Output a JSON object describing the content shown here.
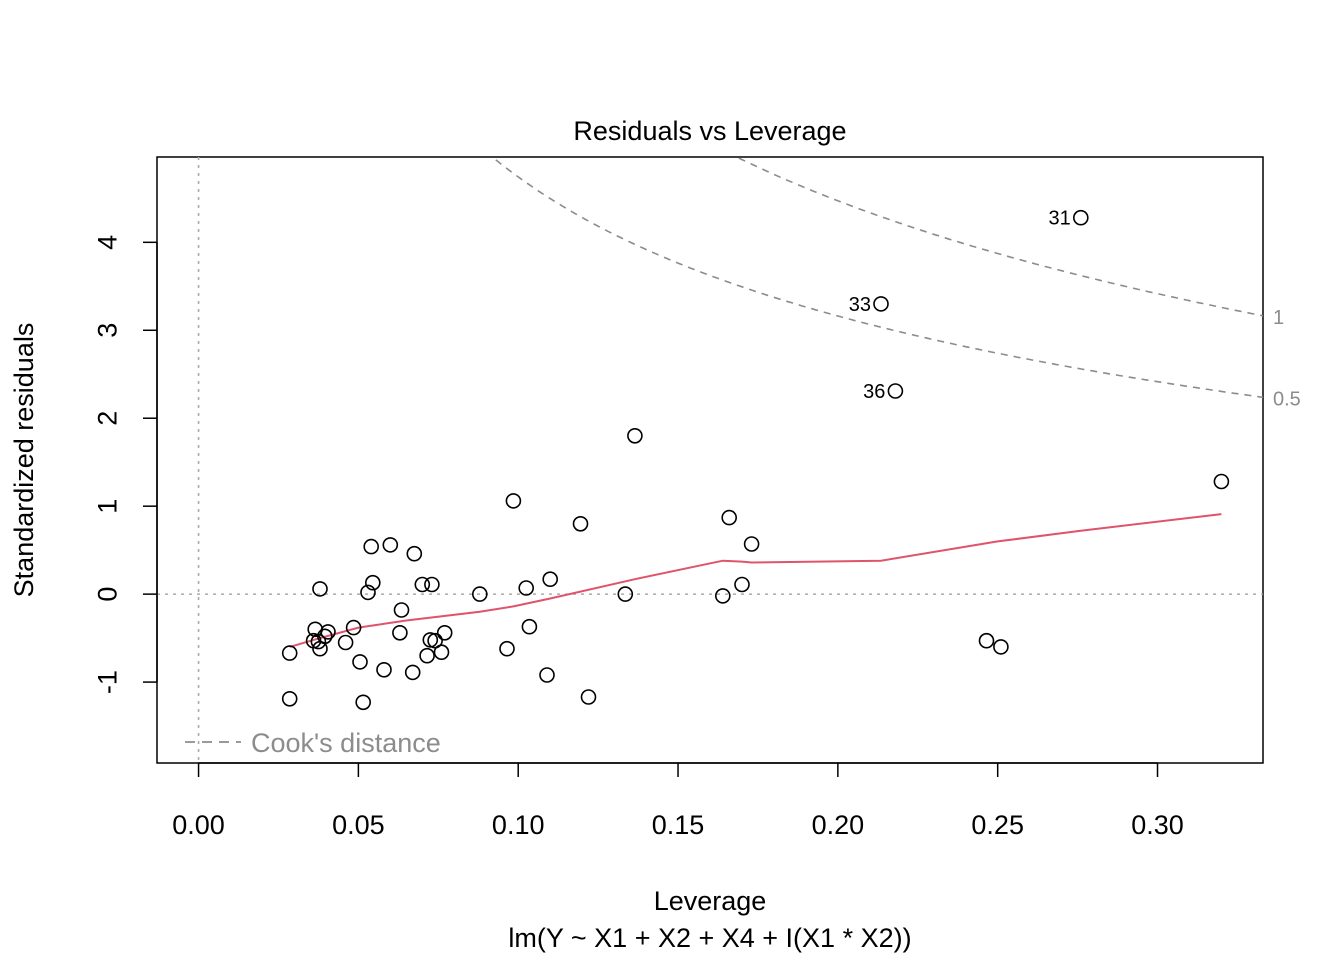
{
  "chart_data": {
    "type": "scatter",
    "title": "Residuals vs Leverage",
    "xlabel": "Leverage",
    "sublabel": "lm(Y ~ X1 + X2 + X4 + I(X1 * X2))",
    "ylabel": "Standardized residuals",
    "xlim": [
      -0.013,
      0.333
    ],
    "ylim": [
      -1.92,
      4.97
    ],
    "xticks": [
      0.0,
      0.05,
      0.1,
      0.15,
      0.2,
      0.25,
      0.3
    ],
    "xtick_labels": [
      "0.00",
      "0.05",
      "0.10",
      "0.15",
      "0.20",
      "0.25",
      "0.30"
    ],
    "yticks": [
      -1,
      0,
      1,
      2,
      3,
      4
    ],
    "ytick_labels": [
      "-1",
      "0",
      "1",
      "2",
      "3",
      "4"
    ],
    "points": [
      {
        "x": 0.0285,
        "y": -1.19
      },
      {
        "x": 0.0285,
        "y": -0.67
      },
      {
        "x": 0.036,
        "y": -0.53
      },
      {
        "x": 0.0365,
        "y": -0.4
      },
      {
        "x": 0.0375,
        "y": -0.54
      },
      {
        "x": 0.038,
        "y": -0.62
      },
      {
        "x": 0.038,
        "y": 0.06
      },
      {
        "x": 0.0395,
        "y": -0.48
      },
      {
        "x": 0.0405,
        "y": -0.43
      },
      {
        "x": 0.046,
        "y": -0.55
      },
      {
        "x": 0.0485,
        "y": -0.38
      },
      {
        "x": 0.0505,
        "y": -0.77
      },
      {
        "x": 0.0515,
        "y": -1.23
      },
      {
        "x": 0.053,
        "y": 0.02
      },
      {
        "x": 0.054,
        "y": 0.54
      },
      {
        "x": 0.0545,
        "y": 0.13
      },
      {
        "x": 0.058,
        "y": -0.86
      },
      {
        "x": 0.06,
        "y": 0.56
      },
      {
        "x": 0.063,
        "y": -0.44
      },
      {
        "x": 0.0635,
        "y": -0.18
      },
      {
        "x": 0.067,
        "y": -0.89
      },
      {
        "x": 0.0675,
        "y": 0.46
      },
      {
        "x": 0.07,
        "y": 0.11
      },
      {
        "x": 0.0715,
        "y": -0.7
      },
      {
        "x": 0.0725,
        "y": -0.52
      },
      {
        "x": 0.073,
        "y": 0.11
      },
      {
        "x": 0.074,
        "y": -0.53
      },
      {
        "x": 0.076,
        "y": -0.66
      },
      {
        "x": 0.077,
        "y": -0.44
      },
      {
        "x": 0.088,
        "y": 0.0
      },
      {
        "x": 0.0965,
        "y": -0.62
      },
      {
        "x": 0.0985,
        "y": 1.06
      },
      {
        "x": 0.1025,
        "y": 0.07
      },
      {
        "x": 0.1035,
        "y": -0.37
      },
      {
        "x": 0.109,
        "y": -0.92
      },
      {
        "x": 0.11,
        "y": 0.17
      },
      {
        "x": 0.1195,
        "y": 0.8
      },
      {
        "x": 0.122,
        "y": -1.17
      },
      {
        "x": 0.1335,
        "y": 0.0
      },
      {
        "x": 0.1365,
        "y": 1.8
      },
      {
        "x": 0.164,
        "y": -0.02
      },
      {
        "x": 0.166,
        "y": 0.87
      },
      {
        "x": 0.17,
        "y": 0.11
      },
      {
        "x": 0.173,
        "y": 0.57
      },
      {
        "x": 0.2135,
        "y": 3.3,
        "label": "33"
      },
      {
        "x": 0.218,
        "y": 2.31,
        "label": "36"
      },
      {
        "x": 0.2465,
        "y": -0.53
      },
      {
        "x": 0.251,
        "y": -0.6
      },
      {
        "x": 0.276,
        "y": 4.28,
        "label": "31"
      },
      {
        "x": 0.32,
        "y": 1.28
      }
    ],
    "smooth_line": {
      "color": "#DF536B",
      "x": [
        0.0285,
        0.038,
        0.05,
        0.065,
        0.088,
        0.0985,
        0.11,
        0.1365,
        0.164,
        0.17,
        0.173,
        0.2135,
        0.25,
        0.276,
        0.32
      ],
      "y": [
        -0.6,
        -0.5,
        -0.38,
        -0.3,
        -0.2,
        -0.14,
        -0.05,
        0.17,
        0.38,
        0.37,
        0.36,
        0.38,
        0.6,
        0.72,
        0.91
      ]
    },
    "reference_lines": [
      {
        "axis": "x",
        "value": 0,
        "style": "dotted",
        "color": "#aaaaaa"
      },
      {
        "axis": "y",
        "value": 0,
        "style": "dotted",
        "color": "#aaaaaa"
      }
    ],
    "cooks_distance": {
      "params": 5,
      "levels": [
        0.5,
        1
      ],
      "level_labels": [
        "0.5",
        "1"
      ],
      "color": "#8c8c8c"
    },
    "legend": {
      "label": "Cook's distance",
      "position": "bottom-left"
    },
    "grid": false
  }
}
